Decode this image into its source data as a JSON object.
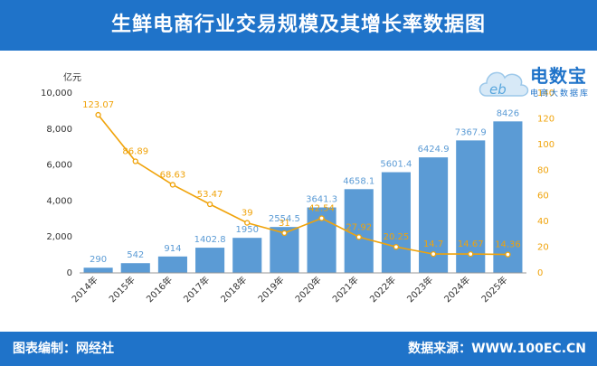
{
  "header": {
    "title": "生鲜电商行业交易规模及其增长率数据图"
  },
  "footer": {
    "left_text": "图表编制：网经社",
    "right_text": "数据来源：WWW.100EC.CN"
  },
  "logo": {
    "icon": "cloud-ebrand-icon",
    "title": "电数宝",
    "subtitle": "电商大数据库"
  },
  "chart_data": {
    "type": "bar",
    "categories": [
      "2014年",
      "2015年",
      "2016年",
      "2017年",
      "2018年",
      "2019年",
      "2020年",
      "2021年",
      "2022年",
      "2023年",
      "2024年",
      "2025年"
    ],
    "series": [
      {
        "values": [
          290,
          542,
          914,
          1402.8,
          1950,
          2554.5,
          3641.3,
          4658.1,
          5601.4,
          6424.9,
          7367.9,
          8426
        ],
        "type": "bar",
        "axis": "left",
        "color": "#5b9bd5"
      },
      {
        "values": [
          123.07,
          86.89,
          68.63,
          53.47,
          39,
          31,
          42.54,
          27.92,
          20.25,
          14.7,
          14.67,
          14.36
        ],
        "type": "line",
        "axis": "right",
        "color": "#f0a30a"
      }
    ],
    "bar_labels": [
      "290",
      "542",
      "914",
      "1402.8",
      "1950",
      "2554.5",
      "3641.3",
      "4658.1",
      "5601.4",
      "6424.9",
      "7367.9",
      "8426"
    ],
    "line_labels": [
      "123.07",
      "86.89",
      "68.63",
      "53.47",
      "39",
      "31",
      "42.54",
      "27.92",
      "20.25",
      "14.7",
      "14.67",
      "14.36"
    ],
    "y_unit": "亿元",
    "y_ticks": [
      "0",
      "2,000",
      "4,000",
      "6,000",
      "8,000",
      "10,000"
    ],
    "ylim": [
      0,
      10000
    ],
    "y2_ticks": [
      "0",
      "20",
      "40",
      "60",
      "80",
      "100",
      "120",
      "140"
    ],
    "y2lim": [
      0,
      140
    ],
    "grid": false,
    "colors": {
      "bar": "#5b9bd5",
      "bar_label": "#5b9bd5",
      "line": "#f0a30a",
      "line_label": "#f0a30a",
      "axis_text": "#333333",
      "y2_text": "#f0a30a"
    }
  }
}
